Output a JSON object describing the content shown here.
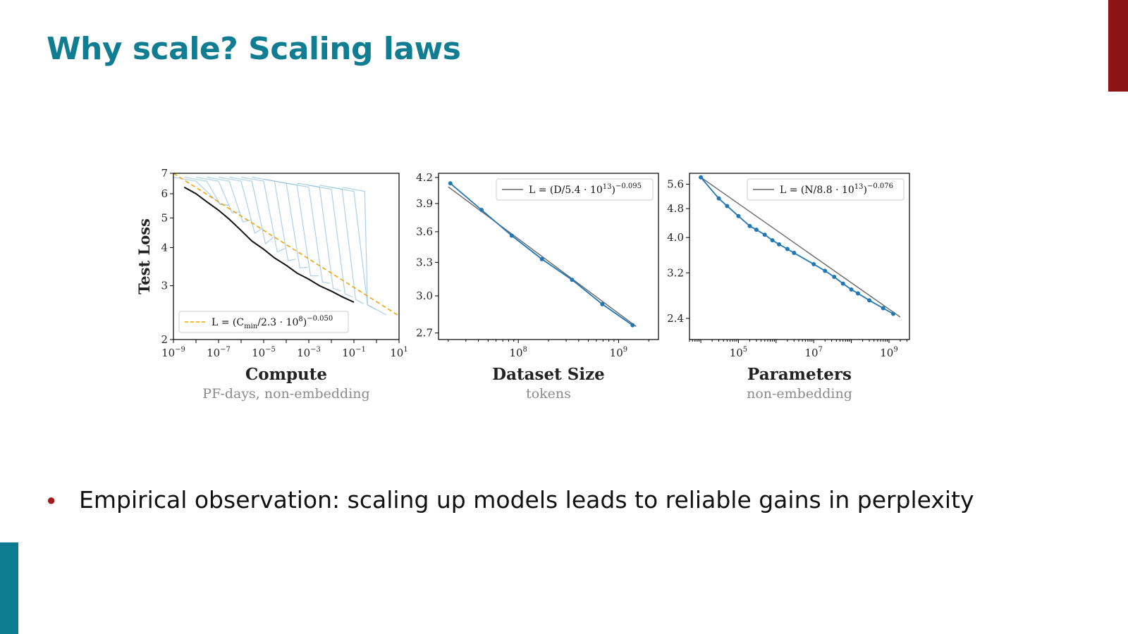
{
  "slide": {
    "title": "Why scale? Scaling laws",
    "bullet": "Empirical observation: scaling up models leads to reliable gains in perplexity"
  },
  "colors": {
    "title": "#107d92",
    "accent_top": "#8b1515",
    "accent_bottom": "#0d7c91",
    "bullet_dot": "#9b1c1c",
    "series_blue": "#1f77b4",
    "light_curves": "#8fc1e3",
    "frontier": "#111111",
    "fit_gray": "#666666",
    "fit_orange": "#f0a30a"
  },
  "chart_data": [
    {
      "type": "line",
      "id": "compute",
      "xscale": "log",
      "yscale": "log",
      "xlim": [
        1e-09,
        10
      ],
      "ylim": [
        2,
        7
      ],
      "xtick_exponents": [
        -9,
        -7,
        -5,
        -3,
        -1,
        1
      ],
      "yticks": [
        2,
        3,
        4,
        5,
        6,
        7
      ],
      "ylabel": "Test Loss",
      "xlabel": "Compute",
      "xsublabel": "PF-days, non-embedding",
      "legend_position": "bottom-left",
      "legend_text": "L = (C_min/2.3 · 10^8)^−0.050",
      "legend_parts": {
        "base": "L = (C",
        "sub": "min",
        "mid": "/2.3 · 10",
        "sup1": "8",
        "close": ")",
        "sup2": "−0.050"
      },
      "fit_line": {
        "name": "L = (C_min/2.3 · 10^8)^−0.050",
        "x": [
          1e-09,
          10
        ],
        "y": [
          7.0,
          2.39
        ]
      },
      "frontier": {
        "x": [
          3e-09,
          1e-08,
          3e-08,
          1e-07,
          3e-07,
          1e-06,
          3e-06,
          1e-05,
          3e-05,
          0.0001,
          0.0003,
          0.001,
          0.003,
          0.01,
          0.03,
          0.1
        ],
        "y": [
          6.3,
          6.0,
          5.65,
          5.3,
          4.95,
          4.55,
          4.2,
          3.95,
          3.7,
          3.5,
          3.3,
          3.15,
          3.0,
          2.88,
          2.76,
          2.65
        ]
      },
      "light_curve_starts": [
        [
          1e-09,
          6.8
        ],
        [
          3e-09,
          6.8
        ],
        [
          1e-08,
          6.8
        ],
        [
          3e-08,
          6.8
        ],
        [
          1e-07,
          6.8
        ],
        [
          3e-07,
          6.8
        ],
        [
          1e-06,
          6.8
        ],
        [
          3e-06,
          6.8
        ],
        [
          1e-05,
          6.7
        ],
        [
          3e-05,
          6.6
        ],
        [
          0.0001,
          6.5
        ],
        [
          0.0003,
          6.5
        ],
        [
          0.001,
          6.4
        ],
        [
          0.003,
          6.4
        ],
        [
          0.01,
          6.3
        ],
        [
          0.03,
          6.3
        ]
      ]
    },
    {
      "type": "line",
      "id": "dataset",
      "xscale": "log",
      "yscale": "log",
      "xlim": [
        16000000.0,
        2500000000.0
      ],
      "ylim": [
        2.65,
        4.25
      ],
      "xtick_exponents": [
        8,
        9
      ],
      "yticks": [
        2.7,
        3.0,
        3.3,
        3.6,
        3.9,
        4.2
      ],
      "xlabel": "Dataset Size",
      "xsublabel": "tokens",
      "legend_position": "top-right",
      "legend_text": "L = (D/5.4 · 10^13)^−0.095",
      "legend_parts": {
        "base": "L = (D/5.4 · 10",
        "sup1": "13",
        "close": ")",
        "sup2": "−0.095"
      },
      "series": [
        {
          "name": "",
          "x": [
            21000000.0,
            43000000.0,
            86000000.0,
            172000000.0,
            344000000.0,
            688000000.0,
            1380000000.0
          ],
          "y": [
            4.13,
            3.83,
            3.56,
            3.33,
            3.14,
            2.93,
            2.76
          ]
        }
      ],
      "fit_line": {
        "name": "L = (D/5.4 · 10^13)^−0.095",
        "x": [
          20000000.0,
          1500000000.0
        ],
        "y": [
          4.09,
          2.75
        ]
      }
    },
    {
      "type": "line",
      "id": "parameters",
      "xscale": "log",
      "yscale": "log",
      "xlim": [
        5000.0,
        3500000000.0
      ],
      "ylim": [
        2.1,
        6.0
      ],
      "xtick_exponents": [
        5,
        7,
        9
      ],
      "yticks": [
        2.4,
        3.2,
        4.0,
        4.8,
        5.6
      ],
      "xlabel": "Parameters",
      "xsublabel": "non-embedding",
      "legend_position": "top-right",
      "legend_text": "L = (N/8.8 · 10^13)^−0.076",
      "legend_parts": {
        "base": "L = (N/8.8 · 10",
        "sup1": "13",
        "close": ")",
        "sup2": "−0.076"
      },
      "series": [
        {
          "name": "",
          "x": [
            10000.0,
            30000.0,
            50000.0,
            100000.0,
            200000.0,
            300000.0,
            500000.0,
            800000.0,
            1200000.0,
            2000000.0,
            3000000.0,
            10000000.0,
            20000000.0,
            35000000.0,
            60000000.0,
            100000000.0,
            150000000.0,
            300000000.0,
            700000000.0,
            1300000000.0
          ],
          "y": [
            5.85,
            5.12,
            4.88,
            4.58,
            4.3,
            4.2,
            4.07,
            3.93,
            3.83,
            3.72,
            3.63,
            3.38,
            3.24,
            3.12,
            2.99,
            2.88,
            2.81,
            2.69,
            2.56,
            2.47
          ]
        }
      ],
      "fit_line": {
        "name": "L = (N/8.8 · 10^13)^−0.076",
        "x": [
          10000.0,
          2000000000.0
        ],
        "y": [
          5.85,
          2.42
        ]
      }
    }
  ]
}
